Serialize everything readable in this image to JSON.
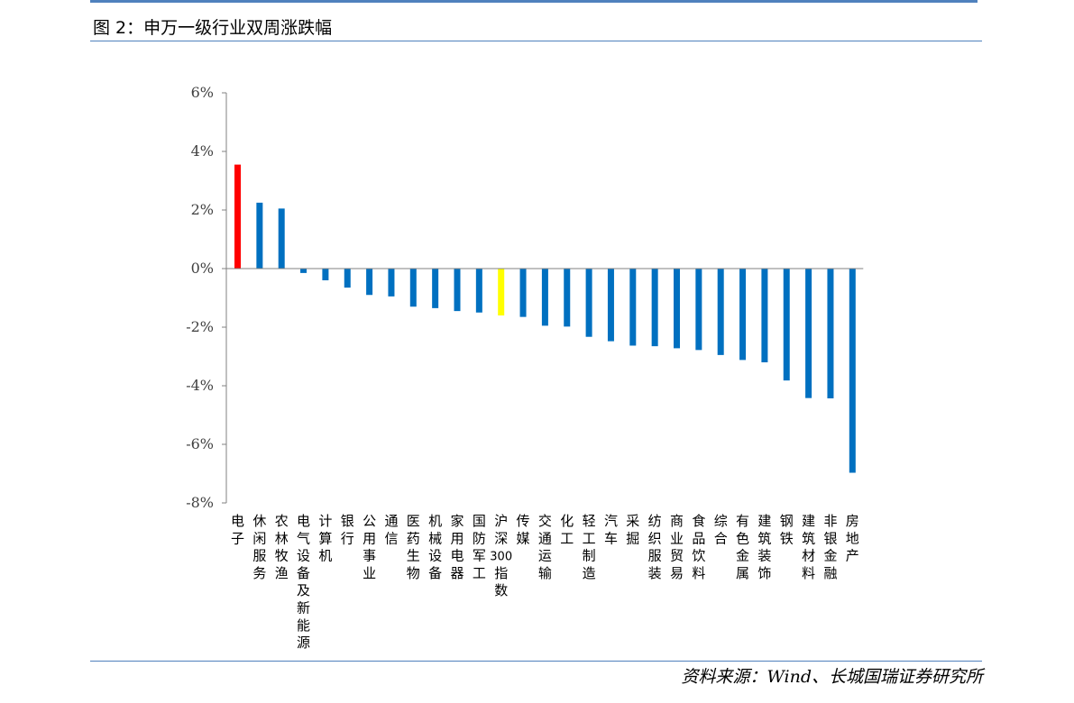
{
  "figure": {
    "title": "图 2：申万一级行业双周涨跌幅",
    "source": "资料来源：Wind、长城国瑞证券研究所"
  },
  "chart_data": {
    "type": "bar",
    "title": "",
    "xlabel": "",
    "ylabel": "",
    "ylim": [
      -8,
      6
    ],
    "yticks": [
      6,
      4,
      2,
      0,
      -2,
      -4,
      -6,
      -8
    ],
    "ytick_labels": [
      "6%",
      "4%",
      "2%",
      "0%",
      "-2%",
      "-4%",
      "-6%",
      "-8%"
    ],
    "grid": false,
    "legend": "none",
    "categories": [
      "电子",
      "休闲服务",
      "农林牧渔",
      "电气设备及新能源",
      "计算机",
      "银行",
      "公用事业",
      "通信",
      "医药生物",
      "机械设备",
      "家用电器",
      "国防军工",
      "沪深300指数",
      "传媒",
      "交通运输",
      "化工",
      "轻工制造",
      "汽车",
      "采掘",
      "纺织服装",
      "商业贸易",
      "食品饮料",
      "综合",
      "有色金属",
      "建筑装饰",
      "钢铁",
      "建筑材料",
      "非银金融",
      "房地产"
    ],
    "values": [
      3.55,
      2.25,
      2.05,
      -0.15,
      -0.4,
      -0.65,
      -0.9,
      -0.95,
      -1.3,
      -1.35,
      -1.45,
      -1.5,
      -1.6,
      -1.65,
      -1.95,
      -1.98,
      -2.33,
      -2.48,
      -2.63,
      -2.65,
      -2.72,
      -2.78,
      -2.95,
      -3.12,
      -3.2,
      -3.82,
      -4.42,
      -4.43,
      -6.97
    ],
    "colors": {
      "default": "#0070c0",
      "highlight_top": "#ff0000",
      "benchmark": "#ffff00"
    },
    "highlight_index": 0,
    "benchmark_index": 12
  }
}
